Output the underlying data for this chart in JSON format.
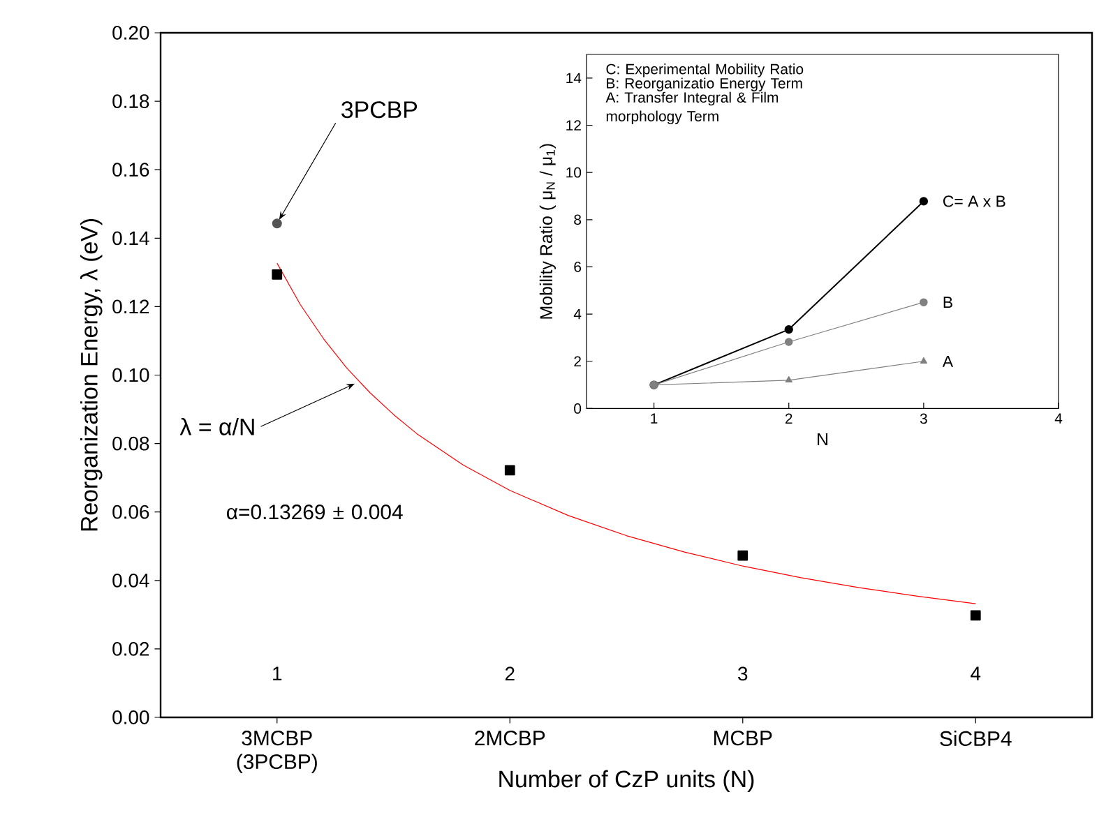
{
  "chart_data": [
    {
      "type": "scatter",
      "xlabel": "Number of CzP units (N)",
      "ylabel": "Reorganization Energy, λ (eV)",
      "x": [
        1,
        2,
        3,
        4
      ],
      "xlim": [
        0.5,
        4.5
      ],
      "xticks": [
        1,
        2,
        3,
        4
      ],
      "ylim": [
        0,
        0.2
      ],
      "yticks": [
        {
          "value": 0,
          "label": "0.00"
        },
        0.02,
        0.04,
        0.06,
        0.08,
        {
          "value": 0.1,
          "label": "0.10"
        },
        0.12,
        0.14,
        0.16,
        0.18,
        {
          "value": 0.2,
          "label": "0.20"
        }
      ],
      "series": [
        {
          "color": "#000000",
          "marker": "square",
          "values": [
            0.1294,
            0.0722,
            0.0473,
            0.0298
          ]
        },
        {
          "color": "#555555",
          "marker": "circle",
          "x": [
            1
          ],
          "values": [
            0.1443
          ]
        },
        {
          "type": "line",
          "color": "#ff0000",
          "x": [
            1,
            1.1,
            1.2,
            1.3,
            1.4,
            1.5,
            1.6,
            1.8,
            2,
            2.25,
            2.5,
            2.75,
            3,
            3.25,
            3.5,
            3.75,
            4
          ],
          "values": [
            0.1327,
            0.1206,
            0.1106,
            0.102,
            0.0948,
            0.0885,
            0.0829,
            0.0737,
            0.0663,
            0.059,
            0.0531,
            0.0483,
            0.0442,
            0.0408,
            0.0379,
            0.0354,
            0.0332
          ]
        }
      ],
      "annotations": [
        {
          "text": "3PCBP",
          "x": 1,
          "y": 0.1443
        },
        {
          "text": "λ = α/N",
          "x": 1.35,
          "y": 0.098
        },
        "α=0.13269 ± 0.004",
        "3MCBP (3PCBP)",
        "2MCBP",
        "MCBP",
        "SiCBP4"
      ]
    },
    {
      "type": "line",
      "xlabel": "N",
      "ylabel": "Mobility Ratio ( μ$_{N}$ / μ$_{1}$)",
      "x": [
        1,
        2,
        3
      ],
      "xlim": [
        0.5,
        4
      ],
      "xticks": [
        1,
        2,
        3,
        4
      ],
      "ylim": [
        0,
        15
      ],
      "yticks": [
        0,
        2,
        4,
        6,
        8,
        10,
        12,
        14
      ],
      "series": [
        {
          "name": "C= A x B",
          "color": "#000000",
          "marker": "circle",
          "values": [
            1,
            3.35,
            8.78
          ]
        },
        {
          "name": "B",
          "color": "#808080",
          "marker": "circle",
          "values": [
            1,
            2.82,
            4.5
          ]
        },
        {
          "name": "A",
          "color": "#808080",
          "marker": "triangle",
          "values": [
            1,
            1.2,
            2.0
          ]
        }
      ],
      "annotations": [
        "C: Experimental Mobility Ratio",
        "B: Reorganizatio Energy Term",
        "A: Transfer Integral & Film morphology Term"
      ]
    }
  ]
}
